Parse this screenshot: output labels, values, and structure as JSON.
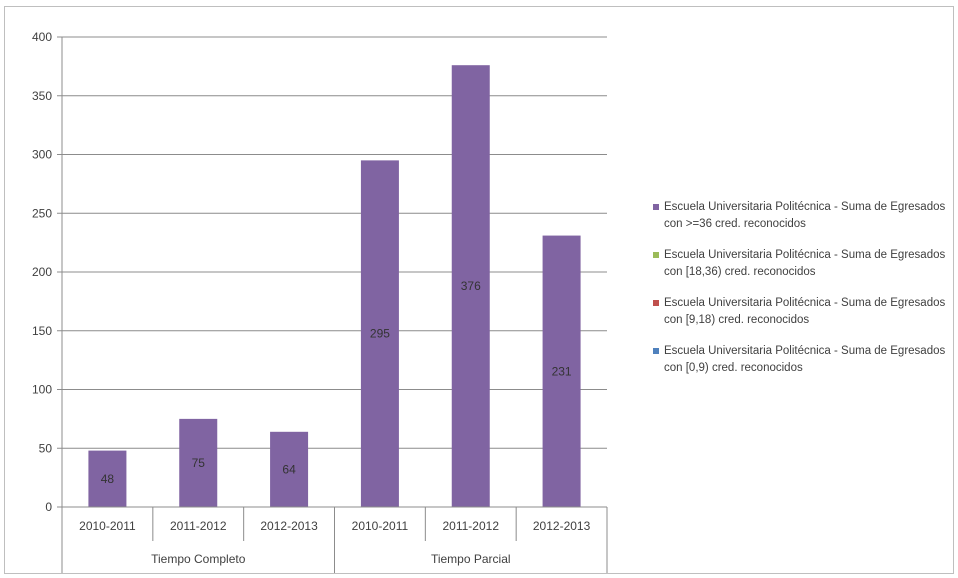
{
  "chart_data": {
    "type": "bar",
    "categories": [
      "2010-2011",
      "2011-2012",
      "2012-2013",
      "2010-2011",
      "2011-2012",
      "2012-2013"
    ],
    "groups": [
      {
        "label": "Tiempo Completo",
        "span": 3
      },
      {
        "label": "Tiempo Parcial",
        "span": 3
      }
    ],
    "series": [
      {
        "name": "Escuela Universitaria Politécnica - Suma de Egresados con >=36 cred. reconocidos",
        "color": "#8064a2",
        "values": [
          48,
          75,
          64,
          295,
          376,
          231
        ]
      },
      {
        "name": "Escuela Universitaria Politécnica - Suma de Egresados con [18,36) cred. reconocidos",
        "color": "#9bbb59",
        "values": [
          0,
          0,
          0,
          0,
          0,
          0
        ]
      },
      {
        "name": "Escuela Universitaria Politécnica - Suma de Egresados con [9,18) cred. reconocidos",
        "color": "#c0504d",
        "values": [
          0,
          0,
          0,
          0,
          0,
          0
        ]
      },
      {
        "name": "Escuela Universitaria Politécnica - Suma de Egresados con [0,9) cred. reconocidos",
        "color": "#4f81bd",
        "values": [
          0,
          0,
          0,
          0,
          0,
          0
        ]
      }
    ],
    "data_labels": [
      "48",
      "75",
      "64",
      "295",
      "376",
      "231"
    ],
    "yticks": [
      "0",
      "50",
      "100",
      "150",
      "200",
      "250",
      "300",
      "350",
      "400"
    ],
    "ylim": [
      0,
      400
    ],
    "grid": true,
    "legend_position": "right"
  }
}
